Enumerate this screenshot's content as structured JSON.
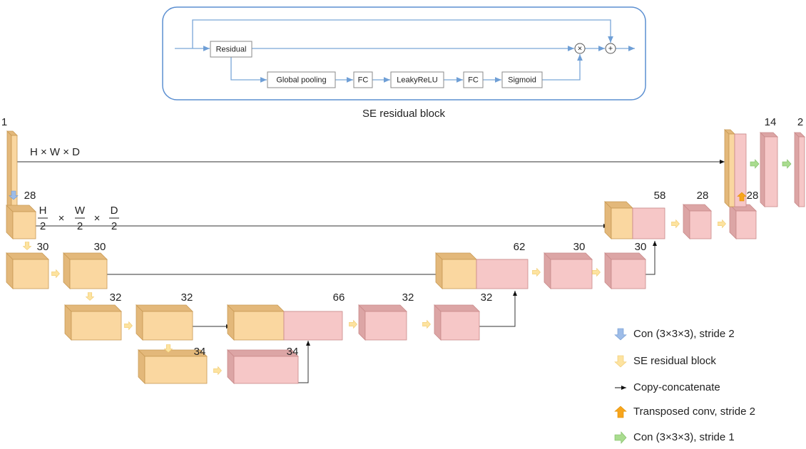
{
  "se_block": {
    "nodes": [
      "Residual",
      "Global pooling",
      "FC",
      "LeakyReLU",
      "FC",
      "Sigmoid"
    ],
    "ops": [
      "×",
      "+"
    ],
    "caption": "SE residual block"
  },
  "dims": {
    "full": "H × W × D",
    "half": {
      "h": "H",
      "w": "W",
      "d": "D",
      "den": "2",
      "times": "×"
    }
  },
  "channels": [
    1,
    28,
    30,
    30,
    32,
    32,
    34,
    34,
    66,
    32,
    32,
    62,
    30,
    30,
    58,
    28,
    28,
    14,
    2
  ],
  "legend": [
    "Con (3×3×3), stride 2",
    "SE residual block",
    "Copy-concatenate",
    "Transposed conv, stride 2",
    "Con (3×3×3), stride 1"
  ]
}
